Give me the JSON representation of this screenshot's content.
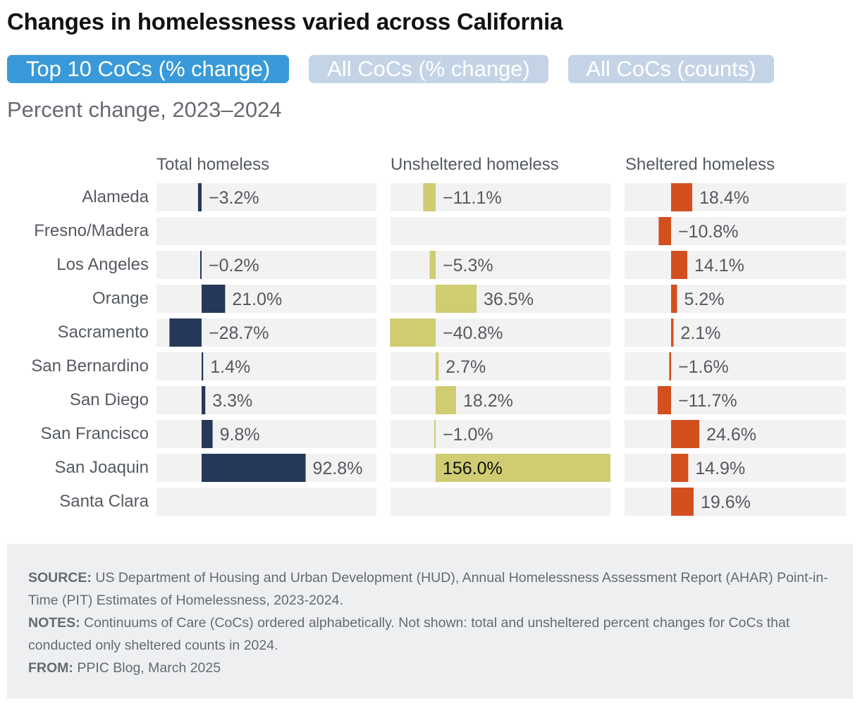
{
  "title": "Changes in homelessness varied across California",
  "tabs": [
    {
      "label": "Top 10 CoCs (% change)",
      "active": true
    },
    {
      "label": "All CoCs (% change)",
      "active": false
    },
    {
      "label": "All CoCs (counts)",
      "active": false
    }
  ],
  "colors": {
    "tab_active": "#3a9ad9",
    "tab_inactive": "#c4d4e6",
    "track": "#f2f2f2",
    "total": "#253858",
    "unsheltered": "#cfcc72",
    "sheltered": "#d24f1e",
    "value_text": "#55595f",
    "value_text_inside": "#ffffff"
  },
  "chart_data": {
    "type": "bar",
    "subtitle": "Percent change, 2023–2024",
    "categories": [
      "Alameda",
      "Fresno/Madera",
      "Los Angeles",
      "Orange",
      "Sacramento",
      "San Bernardino",
      "San Diego",
      "San Francisco",
      "San Joaquin",
      "Santa Clara"
    ],
    "series": [
      {
        "name": "Total homeless",
        "values": [
          -3.2,
          null,
          -0.2,
          21.0,
          -28.7,
          1.4,
          3.3,
          9.8,
          92.8,
          null
        ],
        "labels": [
          "−3.2%",
          "",
          "−0.2%",
          "21.0%",
          "−28.7%",
          "1.4%",
          "3.3%",
          "9.8%",
          "92.8%",
          ""
        ]
      },
      {
        "name": "Unsheltered homeless",
        "values": [
          -11.1,
          null,
          -5.3,
          36.5,
          -40.8,
          2.7,
          18.2,
          -1.0,
          156.0,
          null
        ],
        "labels": [
          "−11.1%",
          "",
          "−5.3%",
          "36.5%",
          "−40.8%",
          "2.7%",
          "18.2%",
          "−1.0%",
          "156.0%",
          ""
        ]
      },
      {
        "name": "Sheltered homeless",
        "values": [
          18.4,
          -10.8,
          14.1,
          5.2,
          2.1,
          -1.6,
          -11.7,
          24.6,
          14.9,
          19.6
        ],
        "labels": [
          "18.4%",
          "−10.8%",
          "14.1%",
          "5.2%",
          "2.1%",
          "−1.6%",
          "−11.7%",
          "24.6%",
          "14.9%",
          "19.6%"
        ]
      }
    ]
  },
  "footer": {
    "source_label": "SOURCE:",
    "source_text": " US Department of Housing and Urban Development (HUD), Annual Homelessness Assessment Report (AHAR) Point-in-Time (PIT) Estimates of Homelessness, 2023-2024.",
    "notes_label": "NOTES:",
    "notes_text": " Continuums of Care (CoCs) ordered alphabetically. Not shown: total and unsheltered percent changes for CoCs that conducted only sheltered counts in 2024.",
    "from_label": "FROM:",
    "from_text": " PPIC Blog, March 2025"
  }
}
